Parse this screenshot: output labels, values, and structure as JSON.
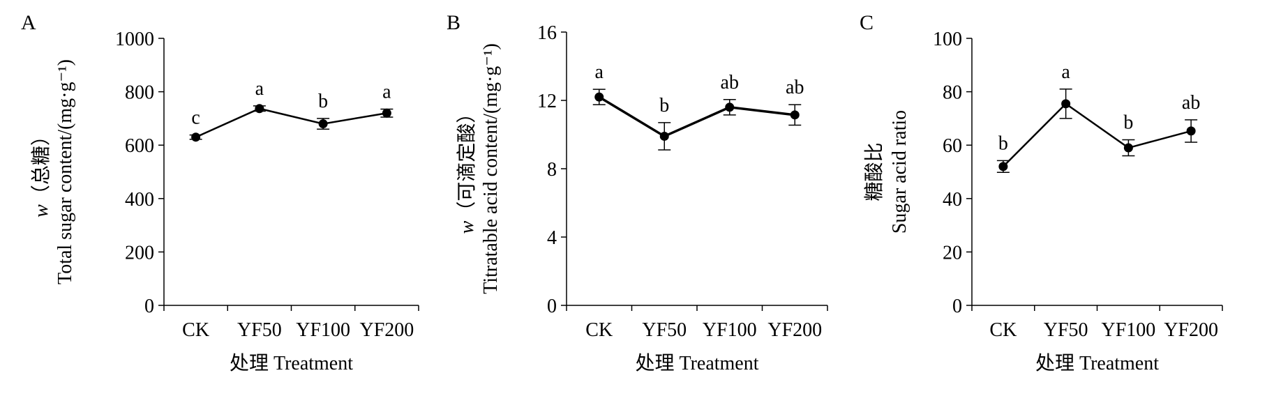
{
  "chart_data": [
    {
      "panel": "A",
      "type": "line",
      "categories": [
        "CK",
        "YF50",
        "YF100",
        "YF200"
      ],
      "values": [
        630,
        737,
        680,
        720
      ],
      "errors": [
        8,
        10,
        20,
        15
      ],
      "significance": [
        "c",
        "a",
        "b",
        "a"
      ],
      "ylim": [
        0,
        1000
      ],
      "yticks": [
        0,
        200,
        400,
        600,
        800,
        1000
      ],
      "ylabel_lines": [
        "Total sugar content/(mg·g⁻¹)"
      ],
      "ylabel_italic_prefix": "w",
      "ylabel_cn": "（总糖）",
      "xlabel": "处理  Treatment",
      "grid": false
    },
    {
      "panel": "B",
      "type": "line",
      "categories": [
        "CK",
        "YF50",
        "YF100",
        "YF200"
      ],
      "values": [
        12.2,
        9.9,
        11.6,
        11.15
      ],
      "errors": [
        0.45,
        0.8,
        0.45,
        0.6
      ],
      "significance": [
        "a",
        "b",
        "ab",
        "ab"
      ],
      "ylim": [
        0,
        16
      ],
      "yticks": [
        0,
        4,
        8,
        12,
        16
      ],
      "ylabel_lines": [
        "Titratable acid content/(mg·g⁻¹)"
      ],
      "ylabel_italic_prefix": "w",
      "ylabel_cn": "（可滴定酸）",
      "xlabel": "处理  Treatment",
      "grid": false
    },
    {
      "panel": "C",
      "type": "line",
      "categories": [
        "CK",
        "YF50",
        "YF100",
        "YF200"
      ],
      "values": [
        52,
        75.5,
        59,
        65.3
      ],
      "errors": [
        2.2,
        5.5,
        3.0,
        4.2
      ],
      "significance": [
        "b",
        "a",
        "b",
        "ab"
      ],
      "ylim": [
        0,
        100
      ],
      "yticks": [
        0,
        20,
        40,
        60,
        80,
        100
      ],
      "ylabel_lines": [
        "糖酸比",
        "Sugar acid ratio"
      ],
      "xlabel": "处理  Treatment",
      "grid": false
    }
  ]
}
